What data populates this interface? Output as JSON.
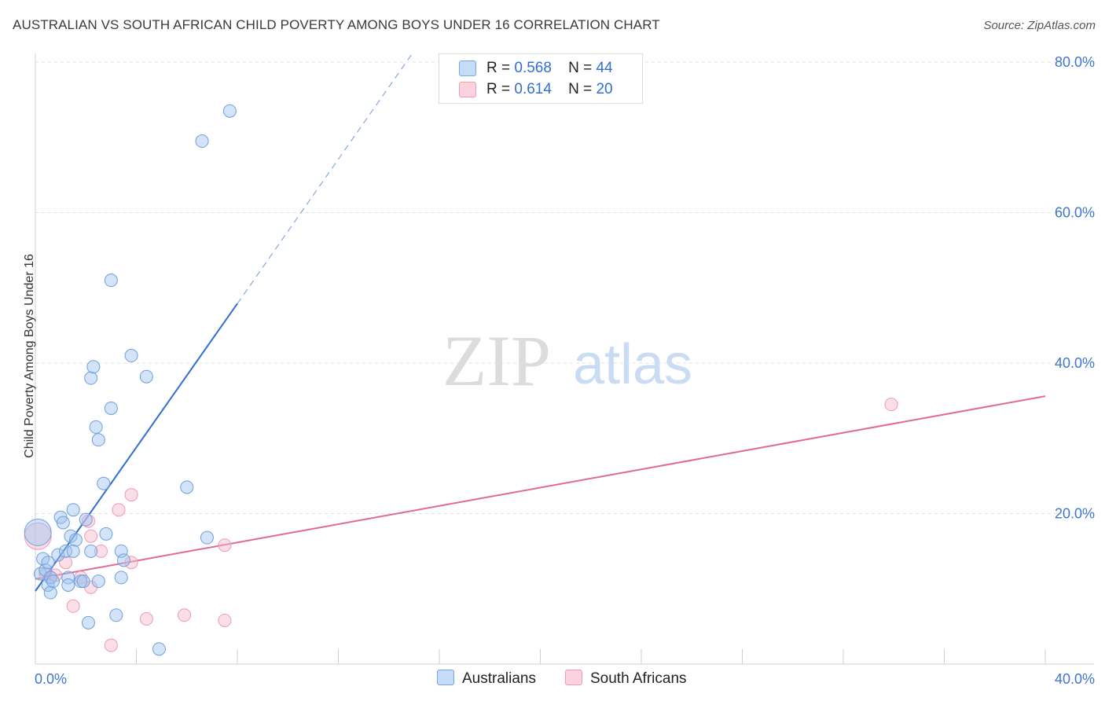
{
  "title": "AUSTRALIAN VS SOUTH AFRICAN CHILD POVERTY AMONG BOYS UNDER 16 CORRELATION CHART",
  "source": "Source: ZipAtlas.com",
  "watermark": {
    "zip": "ZIP",
    "atlas": "atlas"
  },
  "legend": {
    "r_label": "R =",
    "n_label": "N =",
    "rows": [
      {
        "r": "0.568",
        "n": "44",
        "color": "#9ec2f0"
      },
      {
        "r": "0.614",
        "n": "20",
        "color": "#f5b8ca"
      }
    ]
  },
  "bottom_legend": [
    {
      "label": "Australians",
      "color": "#9ec2f0"
    },
    {
      "label": "South Africans",
      "color": "#f5b8ca"
    }
  ],
  "chart_data": {
    "type": "scatter",
    "title": "AUSTRALIAN VS SOUTH AFRICAN CHILD POVERTY AMONG BOYS UNDER 16 CORRELATION CHART",
    "xlabel": "",
    "ylabel": "Child Poverty Among Boys Under 16",
    "xlim": [
      0,
      40
    ],
    "ylim": [
      0,
      80
    ],
    "x_tick_labels": [
      "0.0%",
      "40.0%"
    ],
    "y_ticks": [
      20,
      40,
      60,
      80
    ],
    "y_tick_labels": [
      "20.0%",
      "40.0%",
      "60.0%",
      "80.0%"
    ],
    "grid": true,
    "legend_position": "top-center",
    "colors": {
      "australians": "#2f6fd0",
      "south_africans": "#e06a95"
    },
    "series": [
      {
        "name": "Australians",
        "points": [
          [
            0.1,
            17.5
          ],
          [
            0.2,
            12.0
          ],
          [
            0.3,
            14.0
          ],
          [
            0.4,
            12.5
          ],
          [
            0.5,
            13.5
          ],
          [
            0.5,
            10.5
          ],
          [
            0.6,
            9.5
          ],
          [
            0.6,
            11.5
          ],
          [
            0.7,
            11.0
          ],
          [
            0.9,
            14.5
          ],
          [
            1.0,
            19.5
          ],
          [
            1.1,
            18.8
          ],
          [
            1.2,
            15.0
          ],
          [
            1.3,
            11.5
          ],
          [
            1.4,
            17.0
          ],
          [
            1.5,
            20.5
          ],
          [
            1.5,
            15.0
          ],
          [
            1.6,
            16.5
          ],
          [
            1.8,
            11.0
          ],
          [
            1.9,
            11.0
          ],
          [
            2.0,
            19.2
          ],
          [
            2.1,
            5.5
          ],
          [
            2.2,
            15.0
          ],
          [
            2.2,
            38.0
          ],
          [
            2.3,
            39.5
          ],
          [
            2.4,
            31.5
          ],
          [
            2.5,
            29.8
          ],
          [
            2.5,
            11.0
          ],
          [
            2.7,
            24.0
          ],
          [
            2.8,
            17.3
          ],
          [
            3.0,
            51.0
          ],
          [
            3.0,
            34.0
          ],
          [
            3.2,
            6.5
          ],
          [
            3.4,
            11.5
          ],
          [
            3.4,
            15.0
          ],
          [
            3.5,
            13.8
          ],
          [
            3.8,
            41.0
          ],
          [
            4.4,
            38.2
          ],
          [
            4.9,
            2.0
          ],
          [
            6.0,
            23.5
          ],
          [
            6.6,
            69.5
          ],
          [
            6.8,
            16.8
          ],
          [
            7.7,
            73.5
          ],
          [
            1.3,
            10.5
          ]
        ],
        "trend": {
          "x": [
            0.0,
            8.0
          ],
          "y": [
            9.7,
            47.9
          ]
        },
        "trend_extension": {
          "x": [
            8.0,
            14.9
          ],
          "y": [
            47.9,
            81.0
          ]
        }
      },
      {
        "name": "South Africans",
        "points": [
          [
            0.1,
            17.0
          ],
          [
            0.6,
            11.5
          ],
          [
            0.8,
            11.8
          ],
          [
            1.2,
            13.5
          ],
          [
            1.5,
            7.7
          ],
          [
            1.8,
            11.5
          ],
          [
            2.1,
            19.0
          ],
          [
            2.2,
            17.0
          ],
          [
            2.2,
            10.2
          ],
          [
            2.6,
            15.0
          ],
          [
            3.0,
            2.5
          ],
          [
            3.3,
            20.5
          ],
          [
            3.8,
            22.5
          ],
          [
            3.8,
            13.5
          ],
          [
            4.4,
            6.0
          ],
          [
            5.9,
            6.5
          ],
          [
            7.5,
            15.8
          ],
          [
            7.5,
            5.8
          ],
          [
            33.9,
            34.5
          ],
          [
            0.4,
            12.0
          ]
        ],
        "trend": {
          "x": [
            0.0,
            40.0
          ],
          "y": [
            11.3,
            35.6
          ]
        }
      }
    ]
  }
}
